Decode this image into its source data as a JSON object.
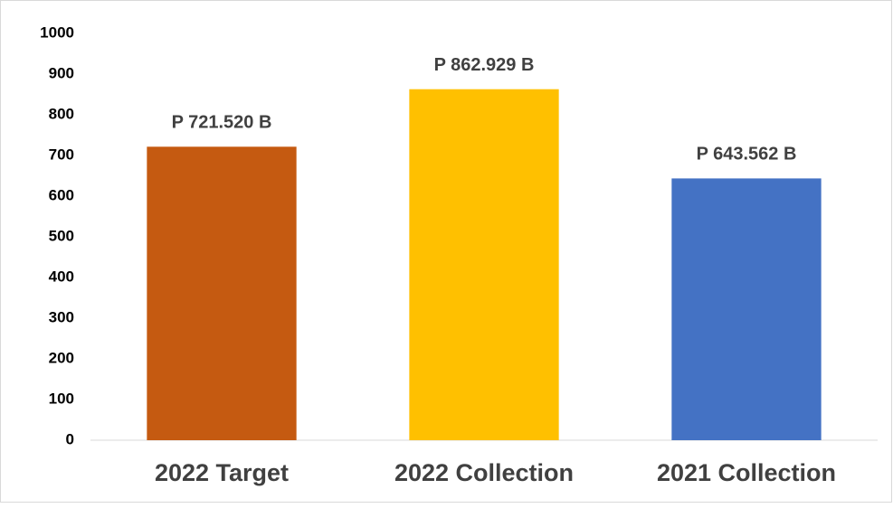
{
  "chart_data": {
    "type": "bar",
    "categories": [
      "2022 Target",
      "2022 Collection",
      "2021 Collection"
    ],
    "values": [
      721.52,
      862.929,
      643.562
    ],
    "value_labels": [
      "P 721.520 B",
      "P 862.929 B",
      "P 643.562 B"
    ],
    "colors": [
      "#c55a11",
      "#ffc000",
      "#4472c4"
    ],
    "ylim": [
      0,
      1000
    ],
    "yticks": [
      0,
      100,
      200,
      300,
      400,
      500,
      600,
      700,
      800,
      900,
      1000
    ],
    "grid": false
  }
}
